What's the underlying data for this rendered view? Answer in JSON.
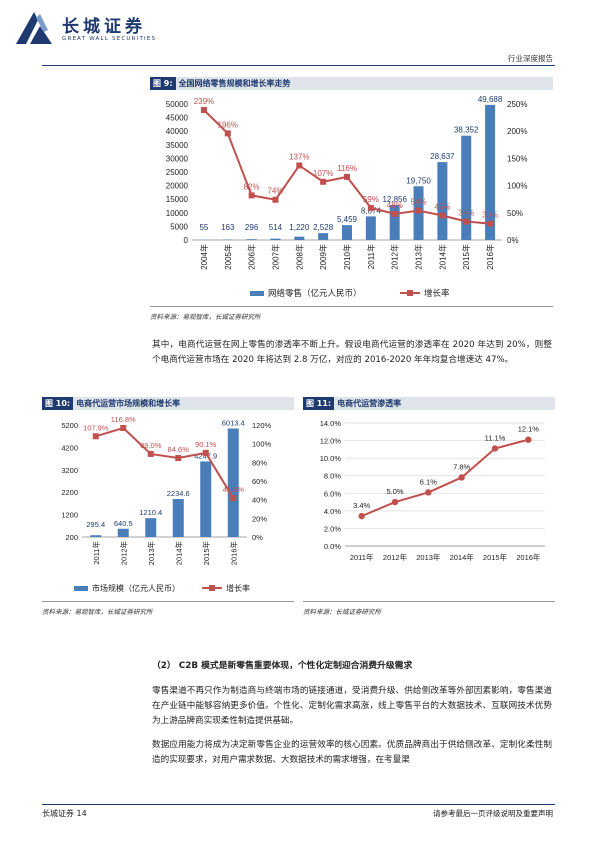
{
  "header": {
    "brand_cn": "长城证券",
    "brand_en": "GREAT WALL SECURITIES",
    "report_type": "行业深度报告"
  },
  "figure9": {
    "num": "图 9:",
    "title": "全国网络零售规模和增长率走势",
    "source": "资料来源：易观智库，长城证券研究所"
  },
  "paragraph1": "其中，电商代运营在网上零售的渗透率不断上升。假设电商代运营的渗透率在 2020 年达到 20%，则整个电商代运营市场在 2020 年将达到 2.8 万亿，对应的 2016-2020 年年均复合增速达 47%。",
  "figure10": {
    "num": "图 10:",
    "title": "电商代运营市场规模和增长率",
    "source": "资料来源：易观智库，长城证券研究所"
  },
  "figure11": {
    "num": "图 11:",
    "title": "电商代运营渗透率",
    "source": "资料来源：长城证券研究所"
  },
  "section": {
    "heading": "（2） C2B 模式是新零售重要体现，个性化定制迎合消费升级需求",
    "para1": "零售渠道不再只作为制造商与终端市场的链接通道，受消费升级、供给侧改革等外部因素影响，零售渠道在产业链中能够容纳更多价值。个性化、定制化需求高涨，线上零售平台的大数据技术、互联网技术优势为上游品牌商实现柔性制造提供基础。",
    "para2": "数据应用能力将成为决定新零售企业的运营效率的核心因素。优质品牌商出于供给侧改革、定制化柔性制造的实现要求，对用户需求数据、大数据技术的需求增强，在考量渠"
  },
  "footer": {
    "left": "长城证券 14",
    "right": "请参考最后一页评级说明及重要声明"
  },
  "chart_data": [
    {
      "type": "bar",
      "id": "fig9",
      "categories": [
        "2004年",
        "2005年",
        "2006年",
        "2007年",
        "2008年",
        "2009年",
        "2010年",
        "2011年",
        "2012年",
        "2013年",
        "2014年",
        "2015年",
        "2016年"
      ],
      "series": [
        {
          "name": "网络零售（亿元人民币）",
          "type": "bar",
          "axis": "left",
          "values": [
            55,
            163,
            296,
            514,
            1220,
            2528,
            5459,
            8674,
            12856,
            19750,
            28637,
            38352,
            49688
          ],
          "labels": [
            "55",
            "163",
            "296",
            "514",
            "1,220",
            "2,528",
            "5,459",
            "8,674",
            "12,856",
            "19,750",
            "28,637",
            "38,352",
            "49,688"
          ]
        },
        {
          "name": "增长率",
          "type": "line",
          "axis": "right",
          "values": [
            239,
            196,
            82,
            74,
            137,
            107,
            116,
            59,
            48,
            54,
            45,
            34,
            30
          ],
          "labels": [
            "239%",
            "196%",
            "82%",
            "74%",
            "137%",
            "107%",
            "116%",
            "59%",
            "48%",
            "54%",
            "45%",
            "34%",
            "30%"
          ]
        }
      ],
      "ylim_left": [
        0,
        50000
      ],
      "yticks_left": [
        "0",
        "5000",
        "10000",
        "15000",
        "20000",
        "25000",
        "30000",
        "35000",
        "40000",
        "45000",
        "50000"
      ],
      "ylim_right": [
        0,
        250
      ],
      "yticks_right": [
        "0%",
        "50%",
        "100%",
        "150%",
        "200%",
        "250%"
      ],
      "legend": "bottom",
      "colors": {
        "bar": "#4a7ebb",
        "line": "#c0504d"
      }
    },
    {
      "type": "bar",
      "id": "fig10",
      "categories": [
        "2011年",
        "2012年",
        "2013年",
        "2014年",
        "2015年",
        "2016年"
      ],
      "series": [
        {
          "name": "市场规模（亿元人民币）",
          "type": "bar",
          "axis": "left",
          "values": [
            295.4,
            640.5,
            1210.4,
            2234.6,
            4247.9,
            6013.4
          ],
          "labels": [
            "295.4",
            "640.5",
            "1210.4",
            "2234.6",
            "4247.9",
            "6013.4"
          ]
        },
        {
          "name": "增长率",
          "type": "line",
          "axis": "right",
          "values": [
            107.9,
            116.8,
            89.0,
            84.6,
            90.1,
            41.6
          ],
          "labels": [
            "107.9%",
            "116.8%",
            "89.0%",
            "84.6%",
            "90.1%",
            "41.6%"
          ]
        }
      ],
      "ylim_left": [
        200,
        6200
      ],
      "yticks_left": [
        "200",
        "1200",
        "2200",
        "3200",
        "4200",
        "5200"
      ],
      "ylim_right": [
        0,
        120
      ],
      "yticks_right": [
        "0%",
        "20%",
        "40%",
        "60%",
        "80%",
        "100%",
        "120%"
      ],
      "legend": "bottom",
      "colors": {
        "bar": "#4a7ebb",
        "line": "#c0504d"
      }
    },
    {
      "type": "line",
      "id": "fig11",
      "categories": [
        "2011年",
        "2012年",
        "2013年",
        "2014年",
        "2015年",
        "2016年"
      ],
      "series": [
        {
          "name": "渗透率",
          "values": [
            3.4,
            5.0,
            6.1,
            7.8,
            11.1,
            12.1
          ],
          "labels": [
            "3.4%",
            "5.0%",
            "6.1%",
            "7.8%",
            "11.1%",
            "12.1%"
          ]
        }
      ],
      "ylim": [
        0,
        14
      ],
      "yticks": [
        "0.0%",
        "2.0%",
        "4.0%",
        "6.0%",
        "8.0%",
        "10.0%",
        "12.0%",
        "14.0%"
      ],
      "grid": true,
      "colors": {
        "line": "#c0504d"
      }
    }
  ]
}
